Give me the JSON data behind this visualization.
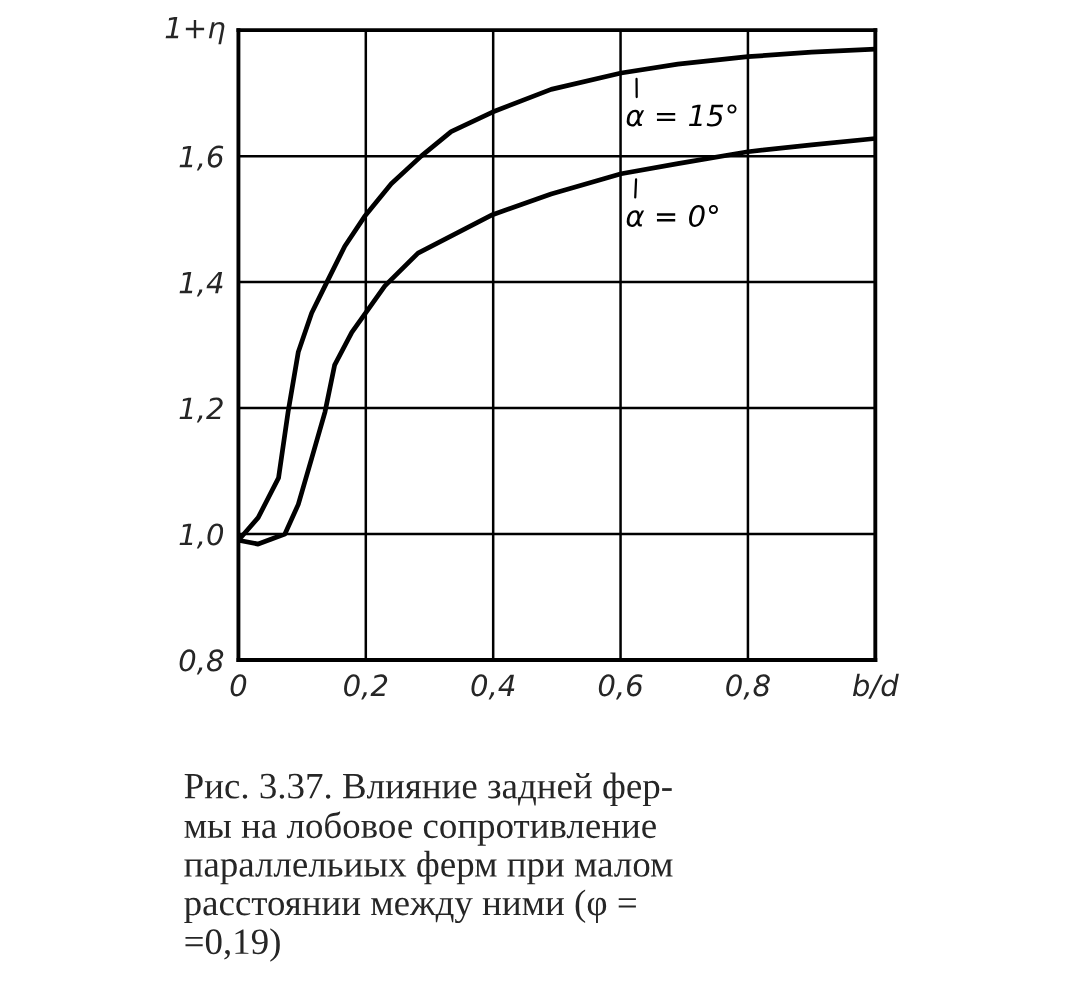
{
  "chart_data": {
    "type": "line",
    "xlabel": "b/d",
    "ylabel": "1+η",
    "xlim": [
      0,
      1.0
    ],
    "ylim": [
      0.8,
      1.8
    ],
    "xticks": [
      0,
      {
        "value": 0.2,
        "label": "0,2"
      },
      {
        "value": 0.4,
        "label": "0,4"
      },
      {
        "value": 0.6,
        "label": "0,6"
      },
      {
        "value": 0.8,
        "label": "0,8"
      }
    ],
    "yticks": [
      {
        "value": 0.8,
        "label": "0,8"
      },
      {
        "value": 1.0,
        "label": "1,0"
      },
      {
        "value": 1.2,
        "label": "1,2"
      },
      {
        "value": 1.4,
        "label": "1,4"
      },
      {
        "value": 1.6,
        "label": "1,6"
      }
    ],
    "grid": true,
    "legend": "top right",
    "series": [
      {
        "name": "α = 15°",
        "color": "#000000",
        "x": [
          0,
          0.031,
          0.063,
          0.078,
          0.094,
          0.115,
          0.136,
          0.167,
          0.198,
          0.24,
          0.287,
          0.334,
          0.399,
          0.491,
          0.601,
          0.69,
          0.8,
          0.9,
          1.0
        ],
        "values": [
          0.99,
          1.026,
          1.089,
          1.194,
          1.289,
          1.351,
          1.394,
          1.457,
          1.504,
          1.556,
          1.6,
          1.639,
          1.67,
          1.706,
          1.732,
          1.746,
          1.758,
          1.765,
          1.77
        ]
      },
      {
        "name": "α = 0°",
        "color": "#000000",
        "x": [
          0,
          0.031,
          0.073,
          0.094,
          0.115,
          0.136,
          0.151,
          0.178,
          0.23,
          0.282,
          0.399,
          0.491,
          0.601,
          0.69,
          0.8,
          0.9,
          1.0
        ],
        "values": [
          0.99,
          0.984,
          1.0,
          1.047,
          1.12,
          1.194,
          1.268,
          1.32,
          1.394,
          1.446,
          1.507,
          1.54,
          1.572,
          1.588,
          1.607,
          1.618,
          1.628
        ]
      }
    ],
    "annotations": [
      "Рис. 3.37. Влияние задней фер-\nмы на лобовое сопротивление\nпараллельиых ферм при малом\nрасстоянии между ними (φ =\n=0,19)"
    ]
  }
}
